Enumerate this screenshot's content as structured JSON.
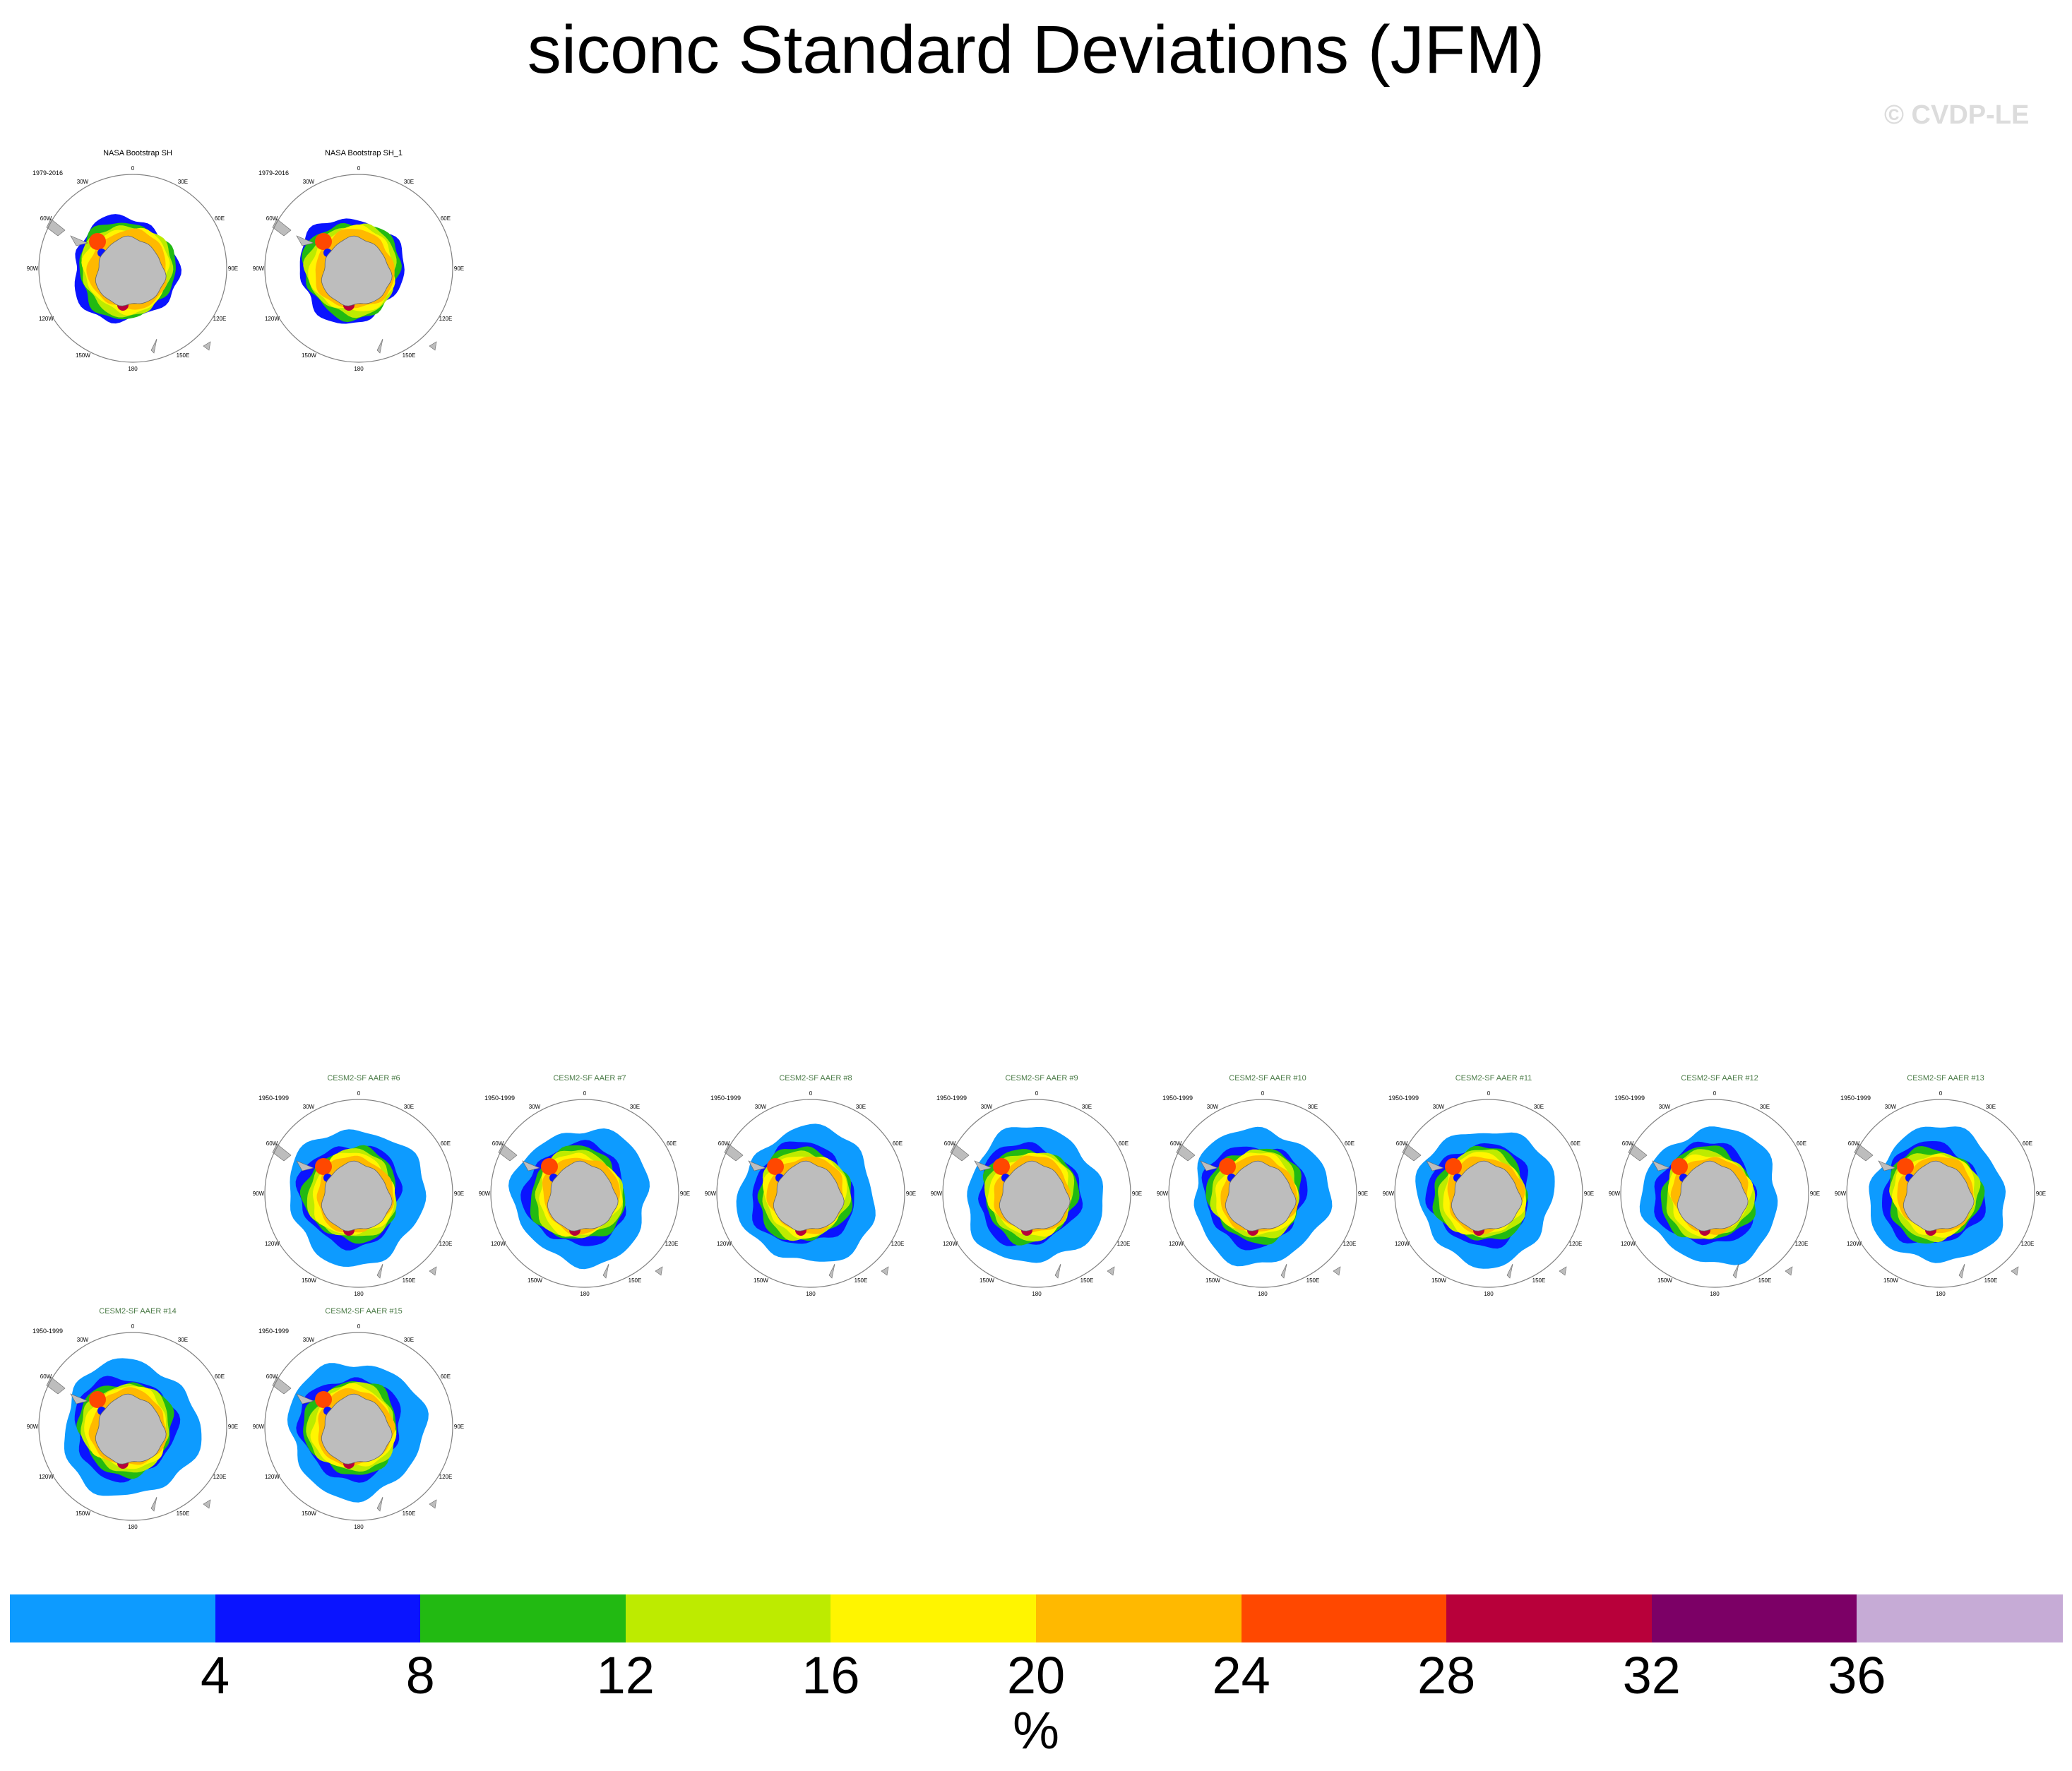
{
  "title": "siconc Standard Deviations (JFM)",
  "watermark": "© CVDP-LE",
  "ring_labels": [
    "0",
    "30E",
    "60E",
    "90E",
    "120E",
    "150E",
    "180",
    "150W",
    "120W",
    "90W",
    "60W",
    "30W"
  ],
  "colors": {
    "land": "#bdbdbd",
    "ice_outer": "#0d9bff",
    "ring": "#808080",
    "obs_title": "#000000",
    "model_title": "#4a7a46"
  },
  "panels": [
    {
      "title": "NASA Bootstrap SH",
      "years": "1979-2016",
      "kind": "obs"
    },
    {
      "title": "NASA Bootstrap SH_1",
      "years": "1979-2016",
      "kind": "obs"
    },
    {
      "title": "CESM2-SF AAER #6",
      "years": "1950-1999",
      "kind": "model"
    },
    {
      "title": "CESM2-SF AAER #7",
      "years": "1950-1999",
      "kind": "model"
    },
    {
      "title": "CESM2-SF AAER #8",
      "years": "1950-1999",
      "kind": "model"
    },
    {
      "title": "CESM2-SF AAER #9",
      "years": "1950-1999",
      "kind": "model"
    },
    {
      "title": "CESM2-SF AAER #10",
      "years": "1950-1999",
      "kind": "model"
    },
    {
      "title": "CESM2-SF AAER #11",
      "years": "1950-1999",
      "kind": "model"
    },
    {
      "title": "CESM2-SF AAER #12",
      "years": "1950-1999",
      "kind": "model"
    },
    {
      "title": "CESM2-SF AAER #13",
      "years": "1950-1999",
      "kind": "model"
    },
    {
      "title": "CESM2-SF AAER #14",
      "years": "1950-1999",
      "kind": "model"
    },
    {
      "title": "CESM2-SF AAER #15",
      "years": "1950-1999",
      "kind": "model"
    }
  ],
  "chart_data": {
    "type": "heatmap",
    "variable": "siconc",
    "statistic": "Standard Deviations",
    "season": "JFM",
    "projection": "south polar stereographic",
    "colorbar": {
      "units": "%",
      "ticks": [
        4,
        8,
        12,
        16,
        20,
        24,
        28,
        32,
        36
      ],
      "colors": [
        "#0d9bff",
        "#0a14ff",
        "#22ba12",
        "#bdeb00",
        "#fff500",
        "#ffb900",
        "#ff4800",
        "#b8003a",
        "#7c0066",
        "#c6abd6"
      ]
    }
  }
}
